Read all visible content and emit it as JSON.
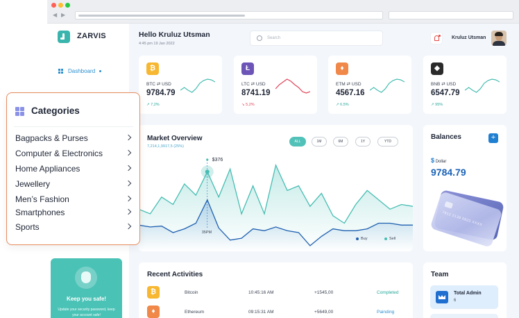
{
  "sidebar": {
    "brand": "ZARVIS",
    "nav_active": "Dashboard",
    "safe_title": "Keep you safe!",
    "safe_text": "Update your security password, keep your account safe!"
  },
  "header": {
    "greeting": "Hello Kruluz Utsman",
    "datetime": "4:45 pm 19 Jan 2022",
    "search_placeholder": "Search",
    "user_name": "Kruluz Utsman"
  },
  "coins": [
    {
      "symbol": "BTC",
      "pair": "⇄ USD",
      "price": "9784.79",
      "change": "↗ 7,2%",
      "trend": "up",
      "color": "#f7b731",
      "glyph": "₿"
    },
    {
      "symbol": "LTC",
      "pair": "⇄ USD",
      "price": "8741.19",
      "change": "↘ 5,2%",
      "trend": "down",
      "color": "#6c55b7",
      "glyph": "Ł"
    },
    {
      "symbol": "ETM",
      "pair": "⇄ USD",
      "price": "4567.16",
      "change": "↗ 6.5%",
      "trend": "up",
      "color": "#f0884a",
      "glyph": "♦"
    },
    {
      "symbol": "BNB",
      "pair": "⇄ USD",
      "price": "6547.79",
      "change": "↗ 95%",
      "trend": "up",
      "color": "#2b2b2b",
      "glyph": "◆"
    }
  ],
  "market": {
    "title": "Market Overview",
    "subtitle": "7,214,1,9917,5 (25%)",
    "ranges": [
      "ALL",
      "1M",
      "6M",
      "1Y",
      "YTD"
    ],
    "active_range": "ALL",
    "marker_value": "$376",
    "marker_label": "35PM",
    "legend_buy": "Buy",
    "legend_sell": "Sell"
  },
  "chart_data": {
    "type": "area",
    "title": "Market Overview",
    "series": [
      {
        "name": "Sell",
        "values": [
          45,
          40,
          58,
          50,
          72,
          60,
          85,
          58,
          88,
          40,
          70,
          40,
          92,
          65,
          70,
          48,
          62,
          38,
          30,
          50,
          65,
          55,
          45,
          50,
          48
        ]
      },
      {
        "name": "Buy",
        "values": [
          28,
          26,
          27,
          20,
          24,
          30,
          55,
          25,
          12,
          14,
          24,
          22,
          26,
          22,
          20,
          6,
          16,
          24,
          22,
          22,
          24,
          30,
          30,
          28,
          28
        ]
      }
    ],
    "grid": false,
    "legend": "bottom-right"
  },
  "balances": {
    "title": "Balances",
    "currency": "Dollar",
    "amount": "9784.79",
    "card_number": "7812 2139 0823 XXXX"
  },
  "activities": {
    "title": "Recent Activities",
    "rows": [
      {
        "name": "Bitcoin",
        "time": "10:45:16 AM",
        "amount": "+1545,00",
        "status": "Completed",
        "status_color": "#27a79a",
        "color": "#f7b731",
        "glyph": "₿"
      },
      {
        "name": "Ethereum",
        "time": "09:15:31 AM",
        "amount": "+5649,00",
        "status": "Painding",
        "status_color": "#2c8fd0",
        "color": "#f0884a",
        "glyph": "♦"
      }
    ]
  },
  "team": {
    "title": "Team",
    "admin_label": "Total Admin",
    "admin_count": "6"
  },
  "categories": {
    "title": "Categories",
    "items": [
      "Bagpacks & Purses",
      "Computer & Electronics",
      "Home Appliances",
      "Jewellery",
      "Men’s Fashion",
      "Smartphones",
      "Sports"
    ]
  }
}
